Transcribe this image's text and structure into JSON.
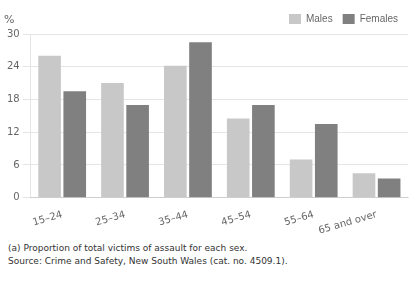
{
  "chart_data": {
    "type": "bar",
    "categories": [
      "15–24",
      "25–34",
      "35–44",
      "45–54",
      "55–64",
      "65 and over"
    ],
    "series": [
      {
        "name": "Males",
        "color": "#c8c8c8",
        "values": [
          26.0,
          21.0,
          24.2,
          14.5,
          7.0,
          4.5
        ]
      },
      {
        "name": "Females",
        "color": "#808080",
        "values": [
          19.5,
          17.0,
          28.5,
          17.0,
          13.5,
          3.5
        ]
      }
    ],
    "ylabel": "%",
    "ylim": [
      0,
      30
    ],
    "yticks": [
      0,
      6,
      12,
      18,
      24,
      30
    ],
    "grid": true,
    "legend": "upper right",
    "footnotes": [
      "(a) Proportion of total victims of assault for each sex.",
      "Source: Crime and Safety, New South Wales (cat. no. 4509.1)."
    ]
  }
}
